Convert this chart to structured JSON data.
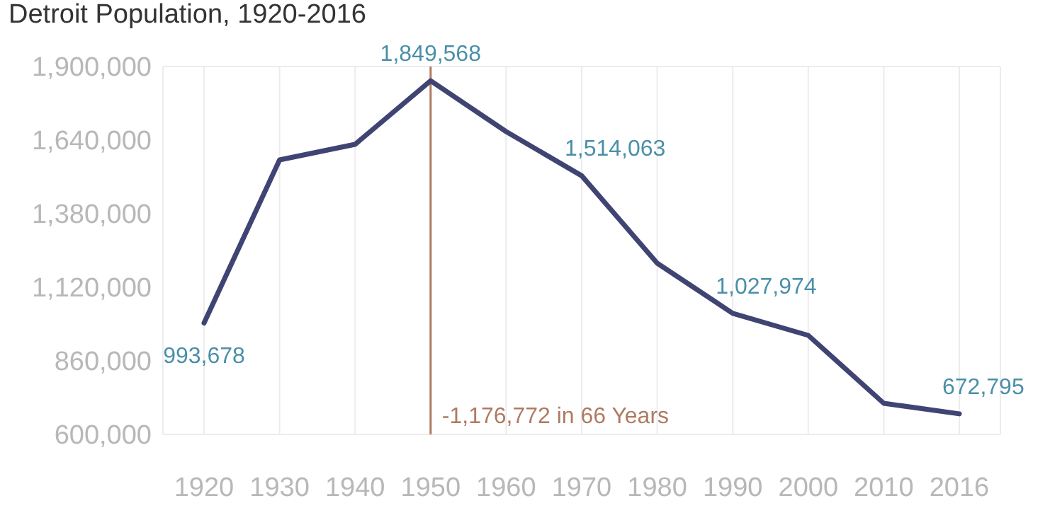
{
  "chart_data": {
    "type": "line",
    "title": "Detroit Population, 1920-2016",
    "categories": [
      "1920",
      "1930",
      "1940",
      "1950",
      "1960",
      "1970",
      "1980",
      "1990",
      "2000",
      "2010",
      "2016"
    ],
    "series": [
      {
        "color": "#3f4472",
        "values": [
          993678,
          1570000,
          1625000,
          1849568,
          1670000,
          1514063,
          1205000,
          1027974,
          950000,
          710000,
          672795
        ],
        "value_labels": [
          "993,678",
          null,
          null,
          "1,849,568",
          null,
          "1,514,063",
          null,
          "1,027,974",
          null,
          null,
          "672,795"
        ]
      }
    ],
    "ylim": [
      600000,
      1900000
    ],
    "yticks": [
      {
        "value": 600000,
        "label": "600,000"
      },
      {
        "value": 860000,
        "label": "860,000"
      },
      {
        "value": 1120000,
        "label": "1,120,000"
      },
      {
        "value": 1380000,
        "label": "1,380,000"
      },
      {
        "value": 1640000,
        "label": "1,640,000"
      },
      {
        "value": 1900000,
        "label": "1,900,000"
      }
    ],
    "ref_lines": [
      {
        "axis": "x",
        "value": "1950",
        "label": "-1,176,772 in 66 Years",
        "color": "#b07a62"
      }
    ],
    "grid": true,
    "marker": "none",
    "line_style": "solid"
  }
}
